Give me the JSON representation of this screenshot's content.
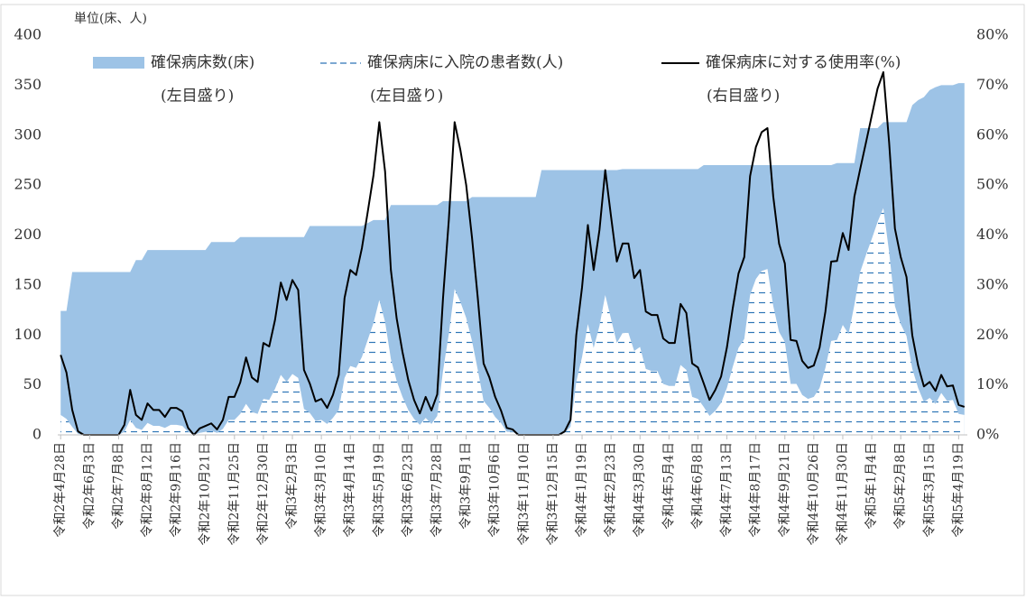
{
  "chart_data": {
    "type": "combo",
    "unit_label": "単位(床、人)",
    "categories": [
      "令和2年4月28日",
      null,
      null,
      null,
      null,
      "令和2年6月3日",
      null,
      null,
      null,
      null,
      "令和2年7月8日",
      null,
      null,
      null,
      null,
      "令和2年8月12日",
      null,
      null,
      null,
      null,
      "令和2年9月16日",
      null,
      null,
      null,
      null,
      "令和2年10月21日",
      null,
      null,
      null,
      null,
      "令和2年11月25日",
      null,
      null,
      null,
      null,
      "令和2年12月30日",
      null,
      null,
      null,
      null,
      "令和3年2月3日",
      null,
      null,
      null,
      null,
      "令和3年3月10日",
      null,
      null,
      null,
      null,
      "令和3年4月14日",
      null,
      null,
      null,
      null,
      "令和3年5月19日",
      null,
      null,
      null,
      null,
      "令和3年6月23日",
      null,
      null,
      null,
      null,
      "令和3年7月28日",
      null,
      null,
      null,
      null,
      "令和3年9月1日",
      null,
      null,
      null,
      null,
      "令和3年10月6日",
      null,
      null,
      null,
      null,
      "令和3年11月10日",
      null,
      null,
      null,
      null,
      "令和3年12月15日",
      null,
      null,
      null,
      null,
      "令和4年1月19日",
      null,
      null,
      null,
      null,
      "令和4年2月23日",
      null,
      null,
      null,
      null,
      "令和4年3月30日",
      null,
      null,
      null,
      null,
      "令和4年5月4日",
      null,
      null,
      null,
      null,
      "令和4年6月8日",
      null,
      null,
      null,
      null,
      "令和4年7月13日",
      null,
      null,
      null,
      null,
      "令和4年8月17日",
      null,
      null,
      null,
      null,
      "令和4年9月21日",
      null,
      null,
      null,
      null,
      "令和4年10月26日",
      null,
      null,
      null,
      null,
      "令和4年11月30日",
      null,
      null,
      null,
      null,
      "令和5年1月4日",
      null,
      null,
      null,
      null,
      "令和5年2月8日",
      null,
      null,
      null,
      null,
      "令和5年3月15日",
      null,
      null,
      null,
      null,
      "令和5年4月19日",
      null
    ],
    "series": [
      {
        "name": "確保病床数(床)",
        "axis_note": "(左目盛り)",
        "type": "area",
        "color": "#9dc3e6",
        "values": [
          124,
          124,
          163,
          163,
          163,
          163,
          163,
          163,
          163,
          163,
          163,
          163,
          163,
          175,
          175,
          185,
          185,
          185,
          185,
          185,
          185,
          185,
          185,
          185,
          185,
          185,
          193,
          193,
          193,
          193,
          193,
          198,
          198,
          198,
          198,
          198,
          198,
          198,
          198,
          198,
          198,
          198,
          198,
          209,
          209,
          209,
          209,
          209,
          209,
          209,
          209,
          209,
          209,
          212,
          215,
          215,
          215,
          230,
          230,
          230,
          230,
          230,
          230,
          230,
          230,
          230,
          234,
          234,
          234,
          234,
          234,
          238,
          238,
          238,
          238,
          238,
          238,
          238,
          238,
          238,
          238,
          238,
          238,
          265,
          265,
          265,
          265,
          265,
          265,
          265,
          265,
          265,
          265,
          265,
          265,
          265,
          265,
          266,
          266,
          266,
          266,
          266,
          266,
          266,
          266,
          266,
          266,
          266,
          266,
          266,
          266,
          270,
          270,
          270,
          270,
          270,
          270,
          270,
          270,
          270,
          270,
          270,
          270,
          270,
          270,
          270,
          270,
          270,
          270,
          270,
          270,
          270,
          270,
          270,
          272,
          272,
          272,
          272,
          307,
          307,
          307,
          307,
          313,
          313,
          313,
          313,
          313,
          330,
          335,
          338,
          345,
          348,
          350,
          350,
          350,
          352,
          352
        ]
      },
      {
        "name": "確保病床に入院の患者数(人)",
        "axis_note": "(左目盛り)",
        "type": "dashed-area",
        "color": "#2e75b6",
        "values": [
          20,
          16,
          8,
          1,
          0,
          0,
          0,
          0,
          0,
          0,
          0,
          3,
          15,
          7,
          5,
          12,
          9,
          9,
          7,
          10,
          10,
          9,
          3,
          0,
          2,
          3,
          4,
          2,
          6,
          15,
          15,
          21,
          31,
          23,
          21,
          36,
          35,
          46,
          60,
          53,
          61,
          57,
          26,
          22,
          14,
          15,
          11,
          17,
          25,
          57,
          69,
          67,
          78,
          95,
          112,
          135,
          113,
          76,
          54,
          38,
          25,
          16,
          10,
          17,
          11,
          19,
          64,
          101,
          146,
          133,
          117,
          94,
          65,
          34,
          27,
          18,
          12,
          3,
          3,
          0,
          0,
          0,
          0,
          0,
          0,
          0,
          0,
          2,
          8,
          53,
          78,
          111,
          87,
          109,
          140,
          116,
          92,
          102,
          102,
          84,
          88,
          66,
          64,
          64,
          51,
          49,
          49,
          70,
          65,
          38,
          36,
          28,
          19,
          24,
          32,
          47,
          68,
          87,
          96,
          140,
          156,
          164,
          166,
          129,
          103,
          93,
          51,
          51,
          40,
          36,
          38,
          47,
          67,
          94,
          95,
          110,
          101,
          130,
          163,
          180,
          196,
          213,
          227,
          183,
          129,
          111,
          99,
          66,
          47,
          33,
          37,
          31,
          42,
          34,
          35,
          21,
          20
        ]
      },
      {
        "name": "確保病床に対する使用率(%)",
        "axis_note": "(右目盛り)",
        "type": "line",
        "axis": "y2",
        "color": "#000000",
        "values": [
          16,
          12.5,
          5,
          0.7,
          0,
          0,
          0,
          0,
          0,
          0,
          0,
          2,
          9,
          4,
          3,
          6.3,
          5,
          5,
          3.6,
          5.4,
          5.4,
          4.7,
          1.4,
          0,
          1.3,
          1.8,
          2.3,
          1.1,
          3,
          7.6,
          7.6,
          10.5,
          15.5,
          11.5,
          10.6,
          18.4,
          17.7,
          23,
          30.5,
          27,
          31,
          29,
          13,
          10.3,
          6.7,
          7.2,
          5.4,
          8,
          12,
          27.4,
          33,
          32,
          37.4,
          44.6,
          52,
          62.6,
          52.7,
          33,
          23.3,
          16.6,
          11,
          7,
          4.3,
          7.6,
          4.9,
          8.1,
          27.4,
          43,
          62.6,
          57,
          50,
          39.5,
          27.4,
          14.3,
          11.5,
          7.6,
          4.9,
          1.4,
          1.1,
          0,
          0,
          0,
          0,
          0,
          0,
          0,
          0,
          0.7,
          3,
          20,
          29.6,
          42,
          33,
          41,
          53,
          43.7,
          34.7,
          38.3,
          38.3,
          31.4,
          33,
          24.7,
          24,
          24,
          19.3,
          18.4,
          18.4,
          26.2,
          24.4,
          14.3,
          13.5,
          10.3,
          7,
          9,
          11.7,
          17.5,
          25.3,
          32.3,
          35.6,
          51.8,
          57.6,
          60.6,
          61.4,
          47.7,
          38.3,
          34.3,
          19,
          18.8,
          14.8,
          13.4,
          13.9,
          17.5,
          24.7,
          34.7,
          34.8,
          40.4,
          37,
          47.7,
          53.2,
          58.5,
          63.9,
          69.3,
          72.6,
          58.5,
          41.3,
          35.6,
          31.6,
          19.9,
          13.9,
          9.7,
          10.6,
          8.8,
          12,
          9.7,
          9.9,
          6,
          5.6
        ]
      }
    ],
    "ylim": [
      0,
      400
    ],
    "yticks": [
      0,
      50,
      100,
      150,
      200,
      250,
      300,
      350,
      400
    ],
    "y2lim": [
      0,
      80
    ],
    "y2ticks": [
      {
        "value": 0,
        "label": "0%"
      },
      {
        "value": 10,
        "label": "10%"
      },
      {
        "value": 20,
        "label": "20%"
      },
      {
        "value": 30,
        "label": "30%"
      },
      {
        "value": 40,
        "label": "40%"
      },
      {
        "value": 50,
        "label": "50%"
      },
      {
        "value": 60,
        "label": "60%"
      },
      {
        "value": 70,
        "label": "70%"
      },
      {
        "value": 80,
        "label": "80%"
      }
    ],
    "grid": false,
    "legend": "top"
  }
}
